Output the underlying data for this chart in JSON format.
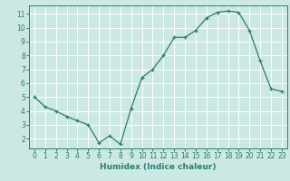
{
  "x": [
    0,
    1,
    2,
    3,
    4,
    5,
    6,
    7,
    8,
    9,
    10,
    11,
    12,
    13,
    14,
    15,
    16,
    17,
    18,
    19,
    20,
    21,
    22,
    23
  ],
  "y": [
    5.0,
    4.3,
    4.0,
    3.6,
    3.3,
    3.0,
    1.7,
    2.2,
    1.6,
    4.2,
    6.4,
    7.0,
    8.0,
    9.3,
    9.3,
    9.8,
    10.7,
    11.1,
    11.2,
    11.1,
    9.8,
    7.6,
    5.6,
    5.4
  ],
  "line_color": "#2a7d6e",
  "marker": "+",
  "bg_color": "#cce8e4",
  "grid_color": "#ffffff",
  "xlabel": "Humidex (Indice chaleur)",
  "xlim": [
    -0.5,
    23.5
  ],
  "ylim": [
    1.3,
    11.6
  ],
  "yticks": [
    2,
    3,
    4,
    5,
    6,
    7,
    8,
    9,
    10,
    11
  ],
  "xticks": [
    0,
    1,
    2,
    3,
    4,
    5,
    6,
    7,
    8,
    9,
    10,
    11,
    12,
    13,
    14,
    15,
    16,
    17,
    18,
    19,
    20,
    21,
    22,
    23
  ],
  "label_fontsize": 6.5,
  "tick_fontsize": 5.5
}
